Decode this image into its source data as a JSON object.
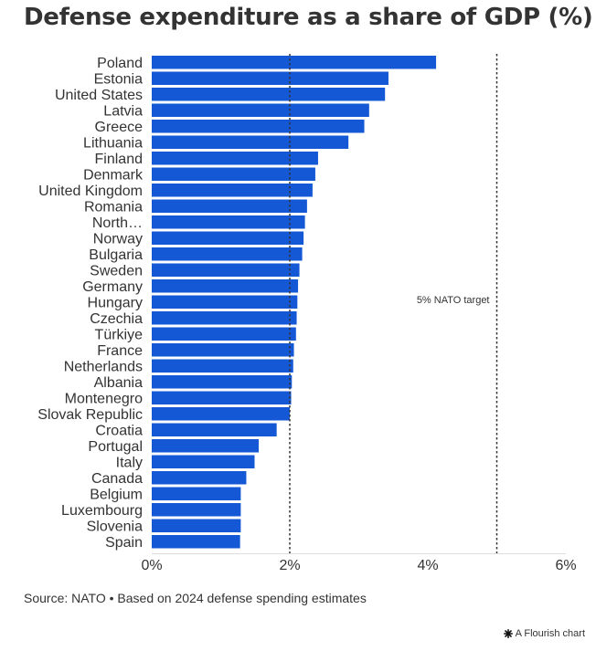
{
  "chart_data": {
    "type": "bar",
    "orientation": "horizontal",
    "title": "Defense expenditure as a share of GDP (%)",
    "categories": [
      "Poland",
      "Estonia",
      "United States",
      "Latvia",
      "Greece",
      "Lithuania",
      "Finland",
      "Denmark",
      "United Kingdom",
      "Romania",
      "North…",
      "Norway",
      "Bulgaria",
      "Sweden",
      "Germany",
      "Hungary",
      "Czechia",
      "Türkiye",
      "France",
      "Netherlands",
      "Albania",
      "Montenegro",
      "Slovak Republic",
      "Croatia",
      "Portugal",
      "Italy",
      "Canada",
      "Belgium",
      "Luxembourg",
      "Slovenia",
      "Spain"
    ],
    "values": [
      4.12,
      3.43,
      3.38,
      3.15,
      3.08,
      2.85,
      2.41,
      2.37,
      2.33,
      2.25,
      2.22,
      2.2,
      2.18,
      2.14,
      2.12,
      2.11,
      2.1,
      2.09,
      2.06,
      2.05,
      2.03,
      2.02,
      2.0,
      1.81,
      1.55,
      1.49,
      1.37,
      1.29,
      1.29,
      1.29,
      1.28
    ],
    "xlim": [
      0,
      6
    ],
    "xticks": [
      0,
      2,
      4,
      6
    ],
    "xtick_labels": [
      "0%",
      "2%",
      "4%",
      "6%"
    ],
    "bar_color": "#1558d6",
    "reference_lines": [
      {
        "value": 2,
        "label": ""
      },
      {
        "value": 5,
        "label": "5% NATO target"
      }
    ],
    "gridlines": false
  },
  "footer": {
    "source": "Source: NATO • Based on 2024 defense spending estimates",
    "brand": "A Flourish chart"
  },
  "colors": {
    "text": "#333333",
    "bar": "#1558d6",
    "reference_line": "#333333"
  }
}
